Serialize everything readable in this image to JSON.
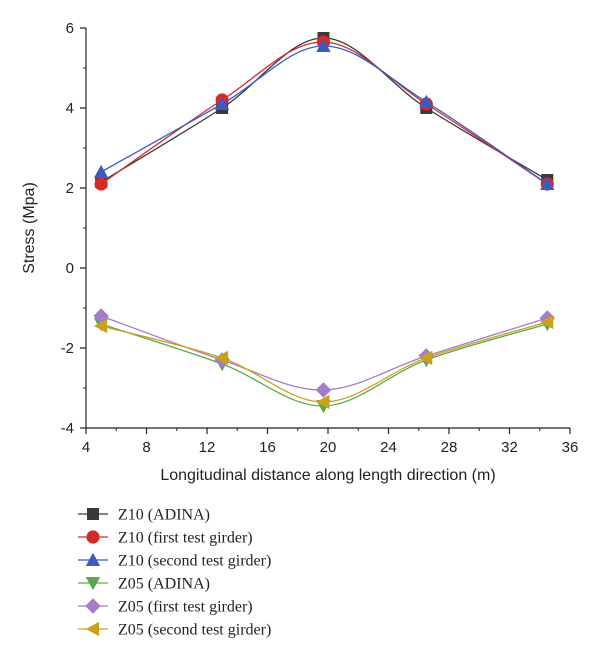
{
  "chart_data": {
    "type": "line",
    "title": "",
    "xlabel": "Longitudinal distance along length direction (m)",
    "ylabel": "Stress (Mpa)",
    "xlim": [
      4,
      36
    ],
    "ylim": [
      -4,
      6
    ],
    "xticks": [
      4,
      8,
      12,
      16,
      20,
      24,
      28,
      32,
      36
    ],
    "yticks": [
      -4,
      -2,
      0,
      2,
      4,
      6
    ],
    "grid": false,
    "legend_position": "bottom",
    "series": [
      {
        "name": "Z10 (ADINA)",
        "color": "#3a3a3a",
        "marker": "square",
        "x": [
          5,
          13,
          19.7,
          26.5,
          34.5
        ],
        "y": [
          2.15,
          4.0,
          5.75,
          4.0,
          2.2
        ]
      },
      {
        "name": "Z10 (first test girder)",
        "color": "#d42a2a",
        "marker": "circle",
        "x": [
          5,
          13,
          19.7,
          26.5,
          34.5
        ],
        "y": [
          2.1,
          4.2,
          5.65,
          4.1,
          2.1
        ]
      },
      {
        "name": "Z10 (second test girder)",
        "color": "#3b5bbf",
        "marker": "triangle-up",
        "x": [
          5,
          13,
          19.7,
          26.5,
          34.5
        ],
        "y": [
          2.4,
          4.1,
          5.55,
          4.15,
          2.1
        ]
      },
      {
        "name": "Z05 (ADINA)",
        "color": "#5aa84a",
        "marker": "triangle-down",
        "x": [
          5,
          13,
          19.7,
          26.5,
          34.5
        ],
        "y": [
          -1.4,
          -2.4,
          -3.45,
          -2.3,
          -1.4
        ]
      },
      {
        "name": "Z05 (first test girder)",
        "color": "#a57cc9",
        "marker": "diamond",
        "x": [
          5,
          13,
          19.7,
          26.5,
          34.5
        ],
        "y": [
          -1.2,
          -2.3,
          -3.05,
          -2.2,
          -1.25
        ]
      },
      {
        "name": "Z05 (second test girder)",
        "color": "#c9a21c",
        "marker": "triangle-left",
        "x": [
          5,
          13,
          19.7,
          26.5,
          34.5
        ],
        "y": [
          -1.45,
          -2.25,
          -3.35,
          -2.25,
          -1.35
        ]
      }
    ]
  }
}
